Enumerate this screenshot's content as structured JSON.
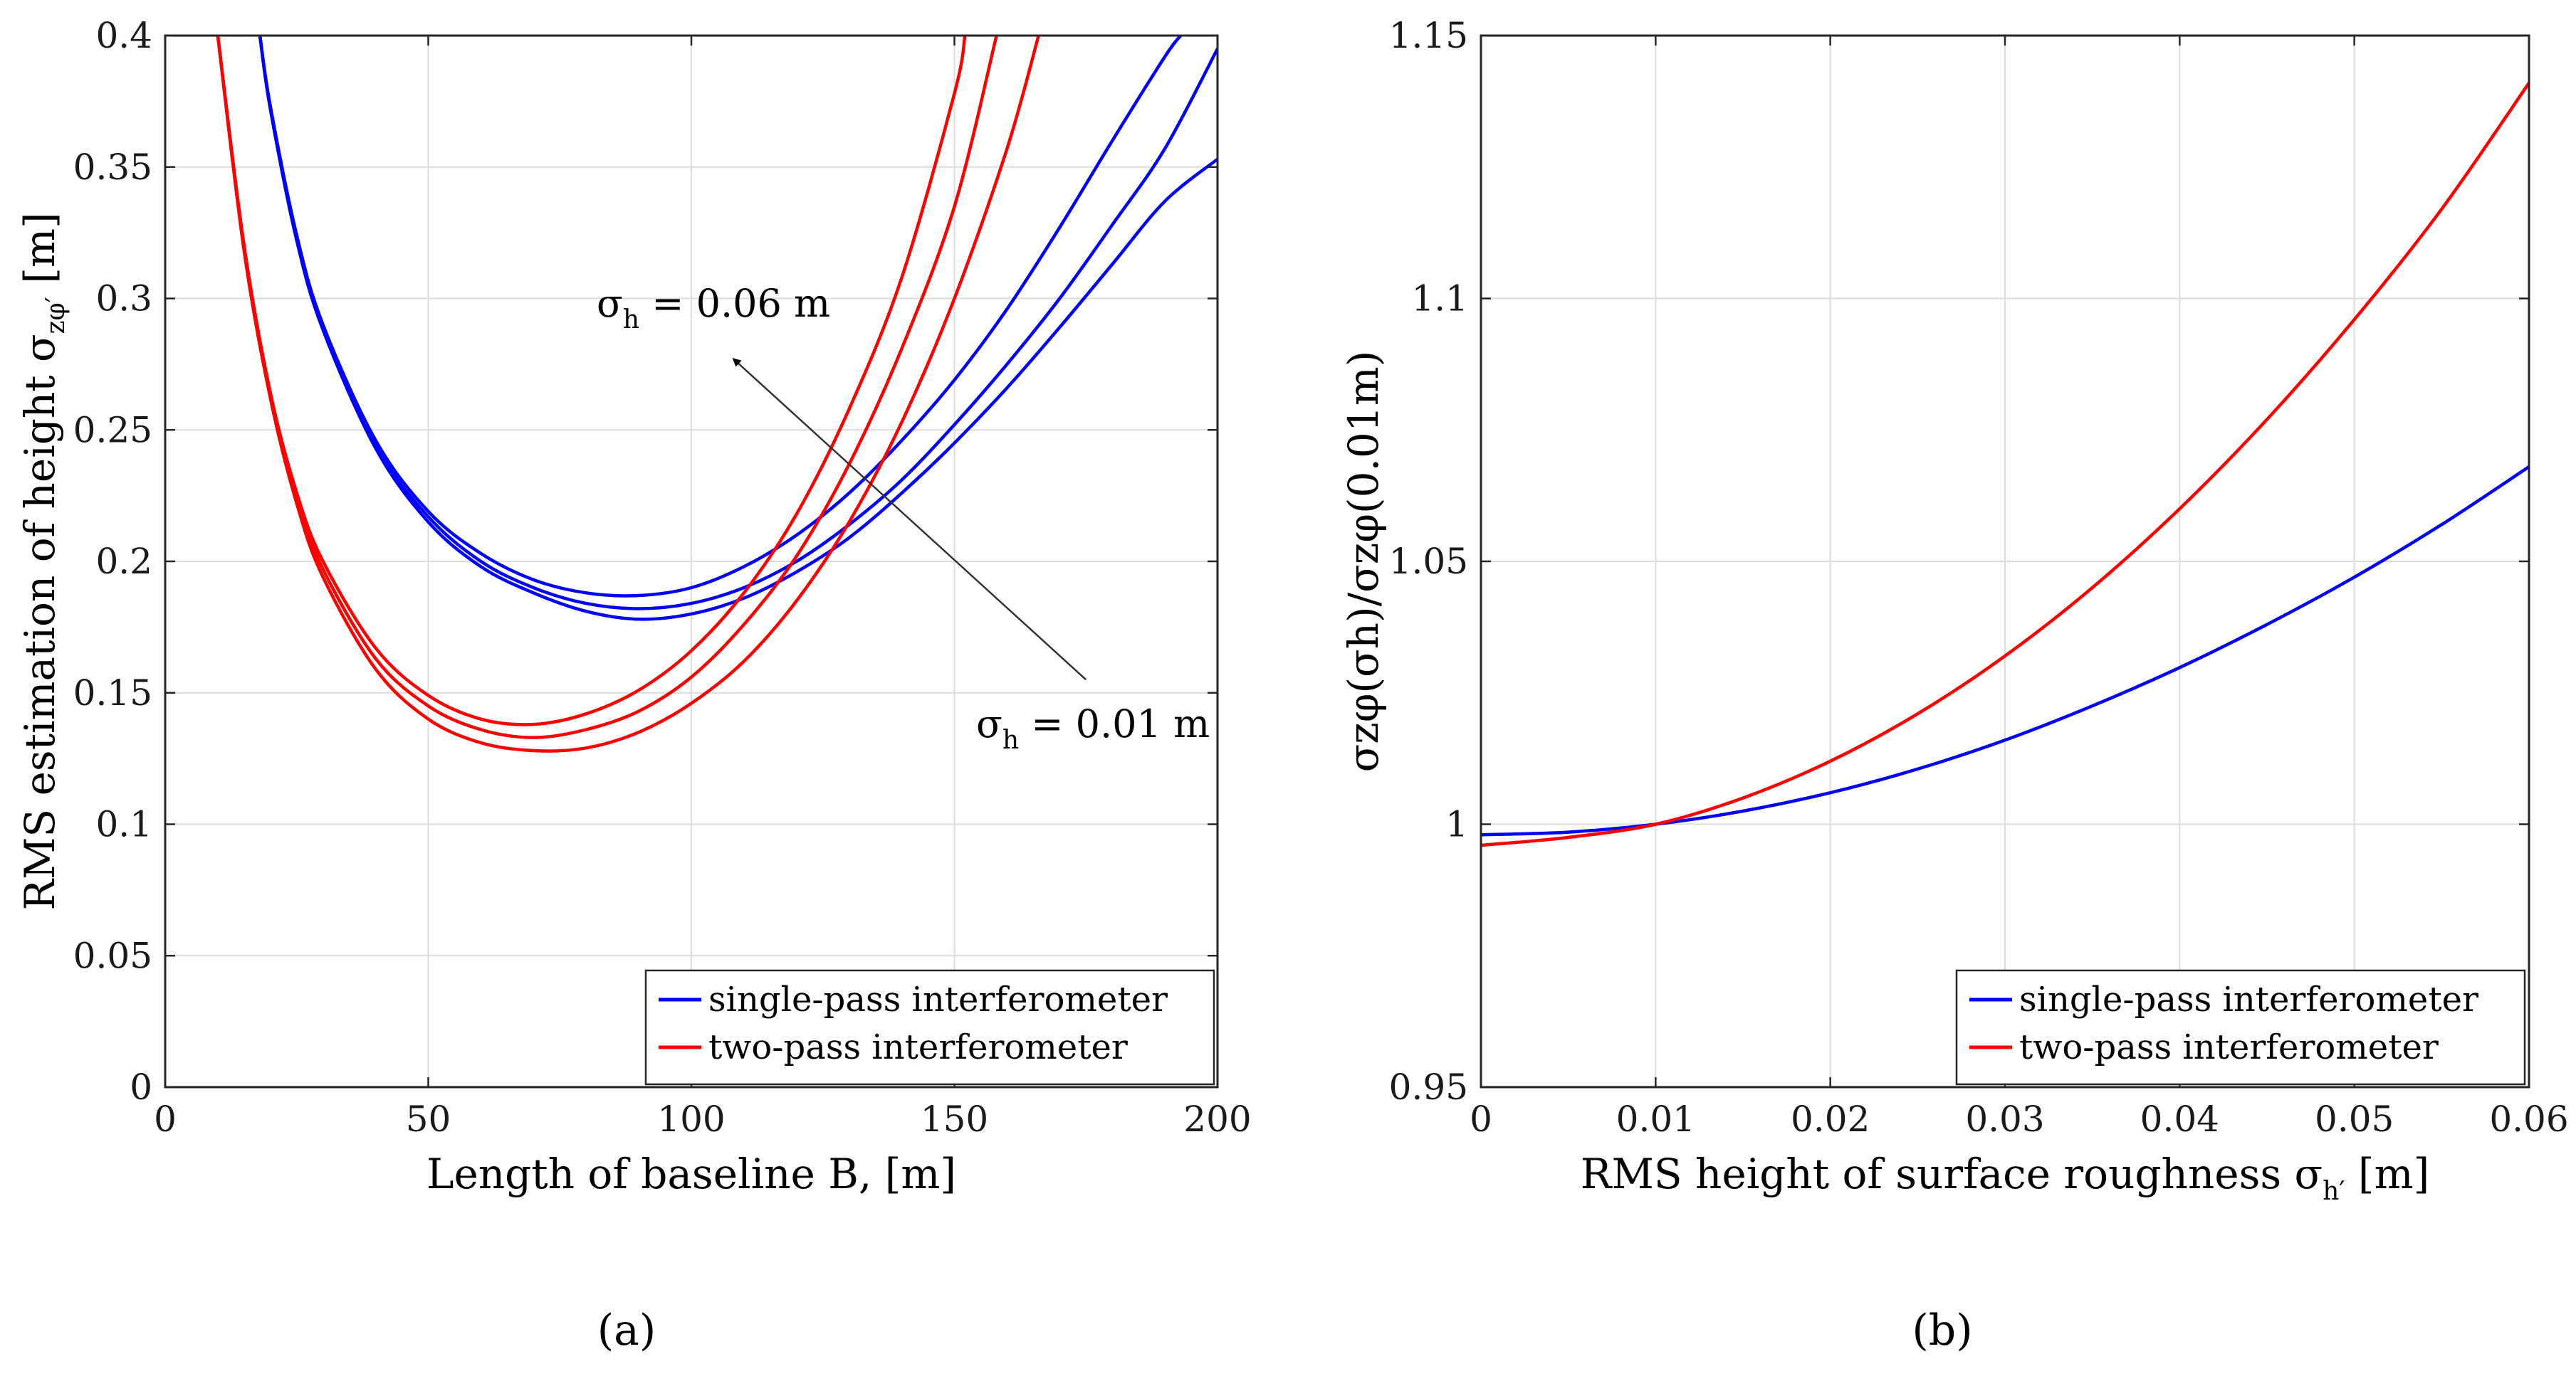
{
  "chart_data": [
    {
      "type": "line",
      "panel_label": "(a)",
      "xlabel": "Length of baseline B, [m]",
      "ylabel": "RMS estimation of height σzφ′ [m]",
      "ylabel_parts": {
        "main": "RMS estimation of height σ",
        "sub": "zφ′",
        "suffix": " [m]"
      },
      "xlim": [
        0,
        200
      ],
      "ylim": [
        0,
        0.4
      ],
      "xticks": [
        0,
        50,
        100,
        150,
        200
      ],
      "xtick_labels": [
        "0",
        "50",
        "100",
        "150",
        "200"
      ],
      "yticks": [
        0,
        0.05,
        0.1,
        0.15,
        0.2,
        0.25,
        0.3,
        0.35,
        0.4
      ],
      "ytick_labels": [
        "0",
        "0.05",
        "0.1",
        "0.15",
        "0.2",
        "0.25",
        "0.3",
        "0.35",
        "0.4"
      ],
      "grid": true,
      "legend": {
        "position": "bottom-right",
        "entries": [
          {
            "label": "single-pass interferometer",
            "color": "#0000ff"
          },
          {
            "label": "two-pass interferometer",
            "color": "#ff0000"
          }
        ]
      },
      "annotations": [
        {
          "text": "σh = 0.06 m",
          "parts": {
            "main": "σ",
            "sub": "h",
            "suffix": " = 0.06 m"
          }
        },
        {
          "text": "σh = 0.01 m",
          "parts": {
            "main": "σ",
            "sub": "h",
            "suffix": " = 0.01 m"
          }
        }
      ],
      "arrow": {
        "from": [
          175,
          0.155
        ],
        "to": [
          108,
          0.277
        ]
      },
      "series": [
        {
          "name": "single-pass interferometer",
          "group": "single-pass",
          "roughness": "σh = 0.01 m",
          "color": "#0000ff",
          "x": [
            18,
            20,
            25,
            30,
            40,
            50,
            60,
            70,
            80,
            90,
            100,
            110,
            120,
            130,
            140,
            150,
            160,
            170,
            180,
            190,
            200
          ],
          "y": [
            0.4,
            0.372,
            0.322,
            0.288,
            0.243,
            0.215,
            0.198,
            0.188,
            0.181,
            0.178,
            0.18,
            0.186,
            0.196,
            0.209,
            0.226,
            0.245,
            0.266,
            0.289,
            0.313,
            0.337,
            0.353
          ]
        },
        {
          "name": "single-pass interferometer",
          "group": "single-pass",
          "roughness": "mid",
          "color": "#0000ff",
          "x": [
            18,
            20,
            25,
            30,
            40,
            50,
            60,
            70,
            80,
            90,
            100,
            110,
            120,
            130,
            140,
            150,
            160,
            170,
            180,
            190,
            200
          ],
          "y": [
            0.4,
            0.372,
            0.323,
            0.289,
            0.244,
            0.217,
            0.2,
            0.19,
            0.184,
            0.182,
            0.184,
            0.19,
            0.2,
            0.214,
            0.231,
            0.252,
            0.275,
            0.3,
            0.328,
            0.357,
            0.395
          ]
        },
        {
          "name": "single-pass interferometer",
          "group": "single-pass",
          "roughness": "σh = 0.06 m",
          "color": "#0000ff",
          "x": [
            18,
            20,
            25,
            30,
            40,
            50,
            60,
            70,
            80,
            90,
            100,
            110,
            120,
            130,
            140,
            150,
            160,
            170,
            180,
            190,
            193
          ],
          "y": [
            0.4,
            0.373,
            0.324,
            0.29,
            0.246,
            0.219,
            0.203,
            0.193,
            0.188,
            0.187,
            0.19,
            0.198,
            0.21,
            0.226,
            0.246,
            0.269,
            0.296,
            0.327,
            0.36,
            0.392,
            0.4
          ]
        },
        {
          "name": "two-pass interferometer",
          "group": "two-pass",
          "roughness": "σh = 0.01 m",
          "color": "#ff0000",
          "x": [
            10,
            15,
            20,
            25,
            30,
            40,
            50,
            60,
            70,
            80,
            90,
            100,
            110,
            120,
            130,
            140,
            150,
            160,
            166
          ],
          "y": [
            0.4,
            0.318,
            0.262,
            0.222,
            0.194,
            0.159,
            0.14,
            0.131,
            0.128,
            0.129,
            0.135,
            0.146,
            0.162,
            0.185,
            0.215,
            0.253,
            0.3,
            0.357,
            0.4
          ]
        },
        {
          "name": "two-pass interferometer",
          "group": "two-pass",
          "roughness": "mid",
          "color": "#ff0000",
          "x": [
            10,
            15,
            20,
            25,
            30,
            40,
            50,
            60,
            70,
            80,
            90,
            100,
            110,
            120,
            130,
            140,
            150,
            158
          ],
          "y": [
            0.4,
            0.319,
            0.263,
            0.224,
            0.197,
            0.163,
            0.145,
            0.136,
            0.133,
            0.136,
            0.143,
            0.156,
            0.176,
            0.202,
            0.237,
            0.281,
            0.335,
            0.4
          ]
        },
        {
          "name": "two-pass interferometer",
          "group": "two-pass",
          "roughness": "σh = 0.06 m",
          "color": "#ff0000",
          "x": [
            10,
            15,
            20,
            25,
            30,
            40,
            50,
            60,
            70,
            80,
            90,
            100,
            110,
            120,
            130,
            140,
            150,
            152
          ],
          "y": [
            0.4,
            0.32,
            0.264,
            0.226,
            0.2,
            0.167,
            0.149,
            0.14,
            0.138,
            0.142,
            0.151,
            0.166,
            0.188,
            0.218,
            0.258,
            0.308,
            0.378,
            0.4
          ]
        }
      ]
    },
    {
      "type": "line",
      "panel_label": "(b)",
      "xlabel": "RMS height of surface roughness σh′ [m]",
      "xlabel_parts": {
        "main": "RMS height of surface roughness σ",
        "sub": "h′",
        "suffix": " [m]"
      },
      "ylabel": "σzφ(σh)/σzφ(0.01m)",
      "xlim": [
        0,
        0.06
      ],
      "ylim": [
        0.95,
        1.15
      ],
      "xticks": [
        0,
        0.01,
        0.02,
        0.03,
        0.04,
        0.05,
        0.06
      ],
      "xtick_labels": [
        "0",
        "0.01",
        "0.02",
        "0.03",
        "0.04",
        "0.05",
        "0.06"
      ],
      "yticks": [
        0.95,
        1,
        1.05,
        1.1,
        1.15
      ],
      "ytick_labels": [
        "0.95",
        "1",
        "1.05",
        "1.1",
        "1.15"
      ],
      "grid": true,
      "legend": {
        "position": "bottom-right",
        "entries": [
          {
            "label": "single-pass interferometer",
            "color": "#0000ff"
          },
          {
            "label": "two-pass interferometer",
            "color": "#ff0000"
          }
        ]
      },
      "series": [
        {
          "name": "single-pass interferometer",
          "color": "#0000ff",
          "x": [
            0,
            0.005,
            0.01,
            0.015,
            0.02,
            0.025,
            0.03,
            0.035,
            0.04,
            0.045,
            0.05,
            0.055,
            0.06
          ],
          "y": [
            0.998,
            0.9985,
            1.0,
            1.0025,
            1.006,
            1.0105,
            1.016,
            1.0225,
            1.0298,
            1.038,
            1.047,
            1.057,
            1.068
          ]
        },
        {
          "name": "two-pass interferometer",
          "color": "#ff0000",
          "x": [
            0,
            0.005,
            0.01,
            0.015,
            0.02,
            0.025,
            0.03,
            0.035,
            0.04,
            0.045,
            0.05,
            0.055,
            0.06
          ],
          "y": [
            0.996,
            0.9975,
            1.0,
            1.005,
            1.012,
            1.021,
            1.032,
            1.045,
            1.06,
            1.077,
            1.096,
            1.117,
            1.141
          ]
        }
      ]
    }
  ]
}
